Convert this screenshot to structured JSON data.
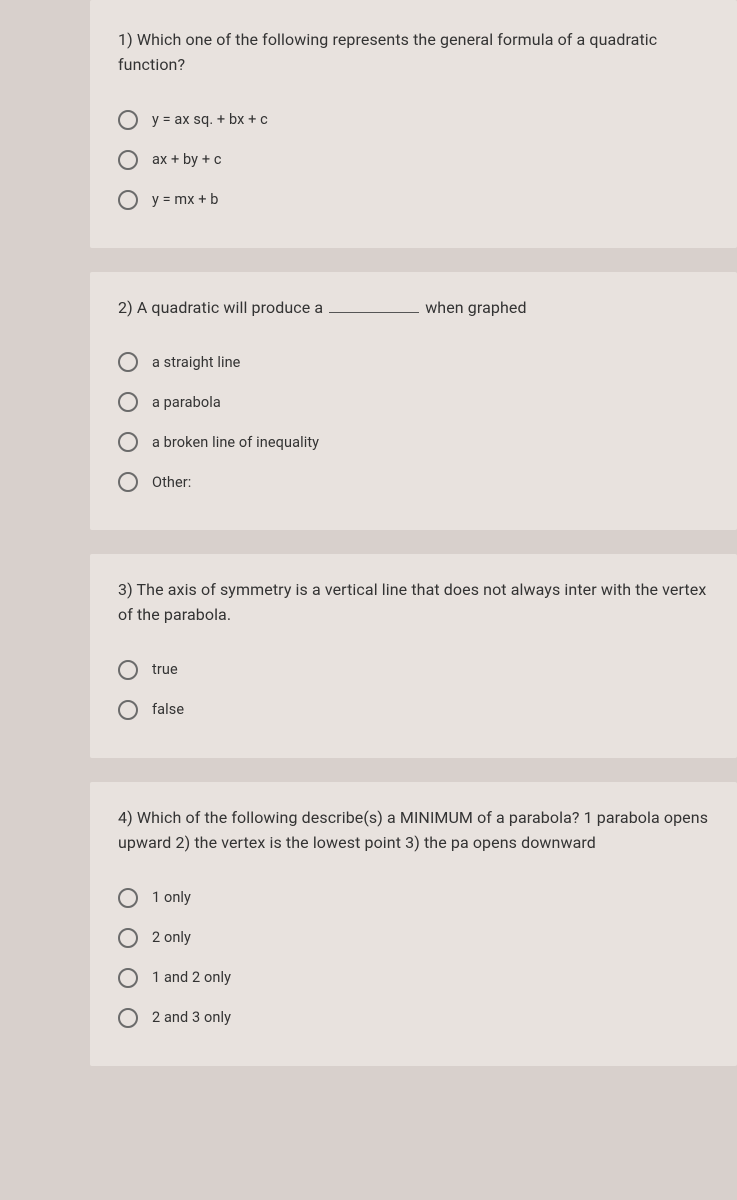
{
  "questions": [
    {
      "number": "1)",
      "text_before": "Which one of the following represents the general formula of a quadratic function?",
      "text_after": "",
      "has_blank": false,
      "options": [
        {
          "label": "y = ax sq. + bx + c"
        },
        {
          "label": "ax + by + c"
        },
        {
          "label": "y = mx + b"
        }
      ]
    },
    {
      "number": "2)",
      "text_before": "A quadratic will produce a",
      "text_after": "when graphed",
      "has_blank": true,
      "options": [
        {
          "label": "a straight line"
        },
        {
          "label": "a parabola"
        },
        {
          "label": "a broken line of inequality"
        },
        {
          "label": "Other:"
        }
      ]
    },
    {
      "number": "3)",
      "text_before": "The axis of symmetry is a vertical line that does not always inter with the vertex of the parabola.",
      "text_after": "",
      "has_blank": false,
      "options": [
        {
          "label": "true"
        },
        {
          "label": "false"
        }
      ]
    },
    {
      "number": "4)",
      "text_before": "Which of the following describe(s) a MINIMUM of a parabola? 1 parabola opens upward 2) the vertex is the lowest point 3) the pa opens downward",
      "text_after": "",
      "has_blank": false,
      "options": [
        {
          "label": "1 only"
        },
        {
          "label": "2 only"
        },
        {
          "label": "1 and 2 only"
        },
        {
          "label": "2 and 3 only"
        }
      ]
    }
  ],
  "colors": {
    "page_bg": "#c5b8b0",
    "card_bg": "#e8e2de",
    "text": "#333333",
    "radio_border": "#6b6b6b"
  }
}
